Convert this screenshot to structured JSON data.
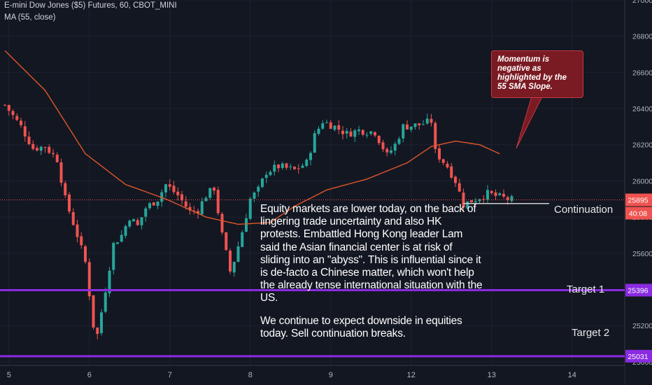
{
  "header": {
    "symbol": "E-mini Dow Jones ($5) Futures, 60, CBOT_MINI",
    "indicator": "MA (55, close)"
  },
  "colors": {
    "background": "#131722",
    "grid": "#1e2230",
    "up": "#26a69a",
    "down": "#ef5350",
    "ma": "#e0562a",
    "target_line": "#8a2be2",
    "price_line": "#ef5350",
    "axis_text": "#b2b5be",
    "continuation_line": "#d0d0d0"
  },
  "annotations": {
    "callout": "Momentum is negative as highlighted by the 55 SMA Slope.",
    "commentary": "Equity markets are lower today, on the back of lingering trade uncertainty and also HK protests. Embattled Hong Kong leader  Lam said the Asian financial center is at risk of sliding into an \"abyss\". This is influential since it is de-facto a Chinese matter, which won't help the already tense international situation with the US.",
    "outlook": "We continue to expect downside in equities today. Sell continuation breaks.",
    "continuation_label": "Continuation",
    "target1_label": "Target 1",
    "target2_label": "Target 2"
  },
  "chart_data": {
    "type": "candlestick",
    "timeframe": "60",
    "y_range": [
      24980,
      27000
    ],
    "y_ticks": [
      25000,
      25200,
      25400,
      25600,
      25800,
      26000,
      26200,
      26400,
      26600,
      26800,
      27000
    ],
    "x_ticks": [
      {
        "label": "5",
        "index": 1
      },
      {
        "label": "6",
        "index": 21
      },
      {
        "label": "7",
        "index": 41
      },
      {
        "label": "8",
        "index": 61
      },
      {
        "label": "9",
        "index": 81
      },
      {
        "label": "12",
        "index": 101
      },
      {
        "label": "13",
        "index": 121
      },
      {
        "label": "14",
        "index": 141
      }
    ],
    "last_price": 25895,
    "countdown": "40:08",
    "target1": 25396,
    "target2": 25031,
    "continuation_level": 25875,
    "price_waypoints": [
      [
        0,
        26420
      ],
      [
        4,
        26300
      ],
      [
        7,
        26180
      ],
      [
        10,
        26190
      ],
      [
        13,
        26120
      ],
      [
        15,
        25900
      ],
      [
        18,
        25700
      ],
      [
        20,
        25550
      ],
      [
        22,
        25200
      ],
      [
        23,
        25150
      ],
      [
        25,
        25400
      ],
      [
        27,
        25650
      ],
      [
        29,
        25700
      ],
      [
        31,
        25800
      ],
      [
        33,
        25750
      ],
      [
        35,
        25850
      ],
      [
        38,
        25900
      ],
      [
        40,
        25980
      ],
      [
        43,
        25920
      ],
      [
        46,
        25830
      ],
      [
        48,
        25840
      ],
      [
        50,
        25920
      ],
      [
        52,
        25960
      ],
      [
        54,
        25700
      ],
      [
        56,
        25500
      ],
      [
        57,
        25560
      ],
      [
        59,
        25720
      ],
      [
        61,
        25900
      ],
      [
        63,
        25950
      ],
      [
        65,
        26050
      ],
      [
        68,
        26080
      ],
      [
        72,
        26060
      ],
      [
        75,
        26100
      ],
      [
        77,
        26250
      ],
      [
        79,
        26330
      ],
      [
        82,
        26300
      ],
      [
        85,
        26260
      ],
      [
        88,
        26280
      ],
      [
        92,
        26270
      ],
      [
        95,
        26140
      ],
      [
        97,
        26200
      ],
      [
        99,
        26300
      ],
      [
        103,
        26310
      ],
      [
        106,
        26330
      ],
      [
        107,
        26160
      ],
      [
        110,
        26080
      ],
      [
        112,
        26000
      ],
      [
        114,
        25870
      ],
      [
        117,
        25900
      ],
      [
        120,
        25930
      ],
      [
        123,
        25910
      ],
      [
        126,
        25895
      ]
    ],
    "ma_waypoints": [
      [
        0,
        26720
      ],
      [
        10,
        26500
      ],
      [
        20,
        26150
      ],
      [
        30,
        25980
      ],
      [
        40,
        25900
      ],
      [
        50,
        25800
      ],
      [
        58,
        25760
      ],
      [
        66,
        25770
      ],
      [
        72,
        25860
      ],
      [
        80,
        25950
      ],
      [
        90,
        26010
      ],
      [
        100,
        26100
      ],
      [
        106,
        26190
      ],
      [
        112,
        26220
      ],
      [
        118,
        26200
      ],
      [
        123,
        26150
      ]
    ]
  }
}
